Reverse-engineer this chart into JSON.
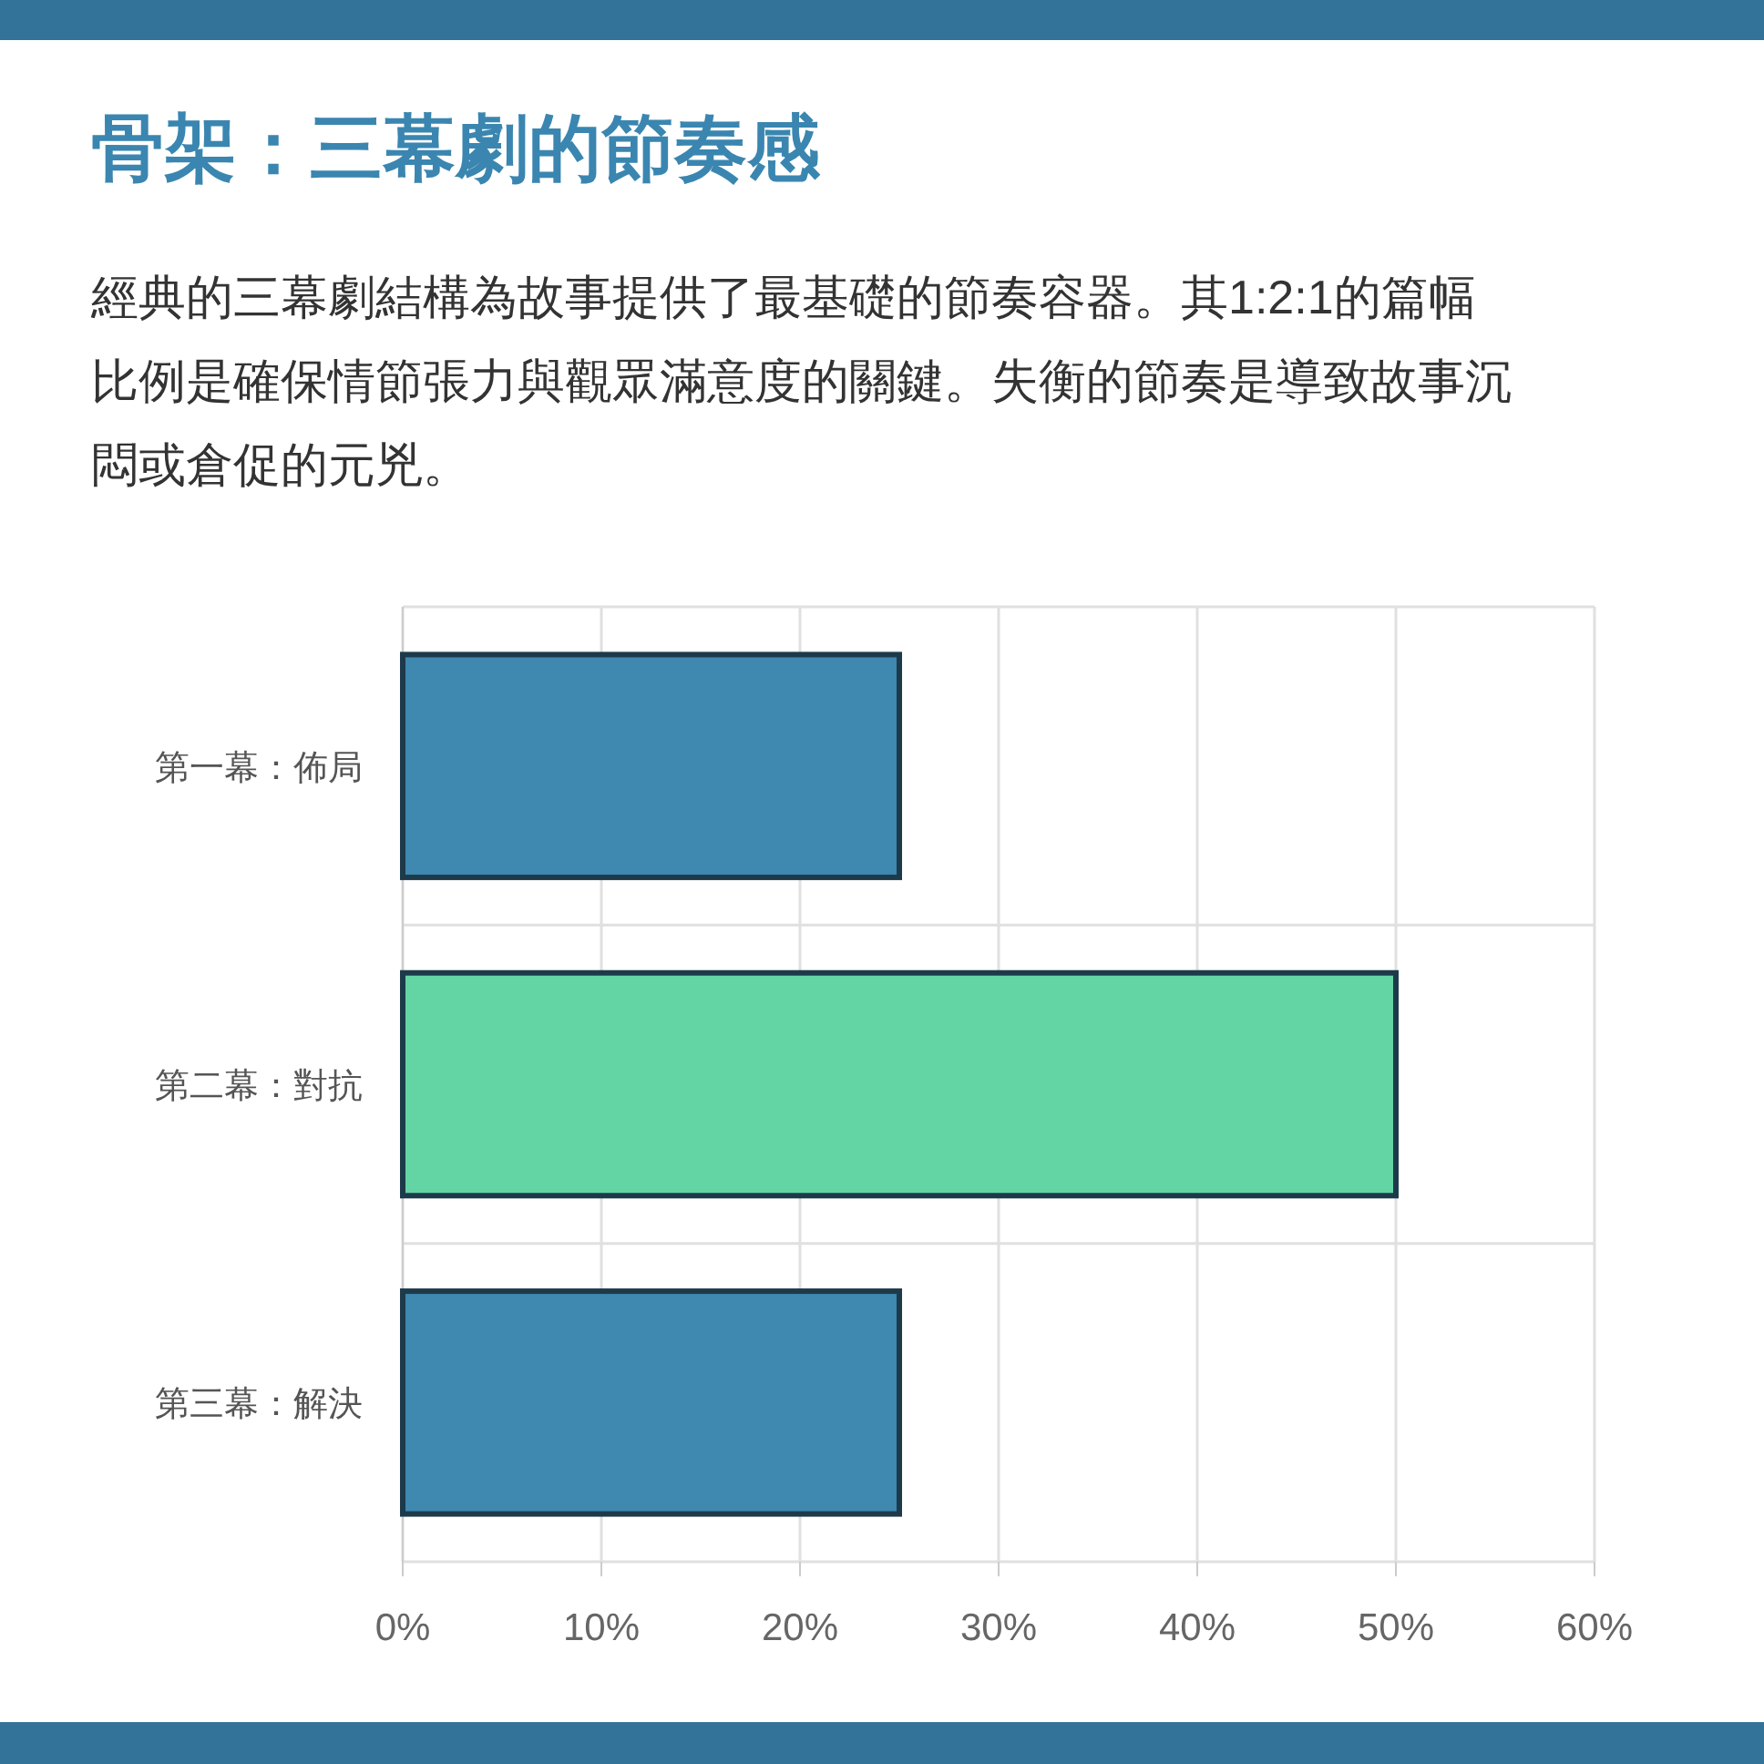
{
  "chart_data": {
    "type": "bar",
    "orientation": "horizontal",
    "title": "骨架：三幕劇的節奏感",
    "subtitle": "經典的三幕劇結構為故事提供了最基礎的節奏容器。其1:2:1的篇幅比例是確保情節張力與觀眾滿意度的關鍵。失衡的節奏是導致故事沉悶或倉促的元兇。",
    "categories": [
      "第一幕：佈局",
      "第二幕：對抗",
      "第三幕：解決"
    ],
    "values": [
      25,
      50,
      25
    ],
    "colors": [
      "#3f88b0",
      "#63d4a4",
      "#3f88b0"
    ],
    "xlim": [
      0,
      60
    ],
    "xticks": [
      {
        "value": 0,
        "label": "0%"
      },
      {
        "value": 10,
        "label": "10%"
      },
      {
        "value": 20,
        "label": "20%"
      },
      {
        "value": 30,
        "label": "30%"
      },
      {
        "value": 40,
        "label": "40%"
      },
      {
        "value": 50,
        "label": "50%"
      },
      {
        "value": 60,
        "label": "60%"
      }
    ],
    "grid": true
  }
}
